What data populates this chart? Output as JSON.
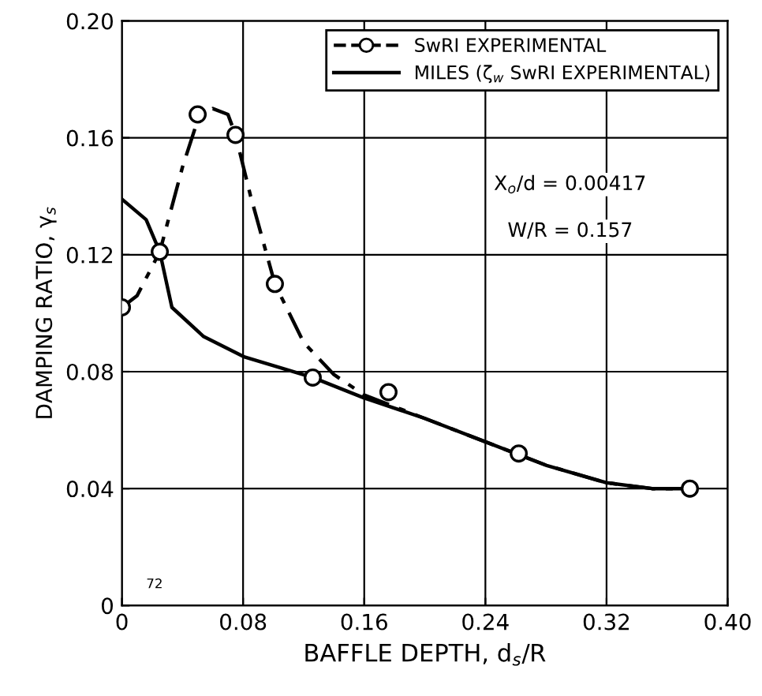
{
  "chart_data": {
    "type": "line",
    "xlabel": "BAFFLE DEPTH, d$_{s}$/R",
    "ylabel": "DAMPING RATIO, γ$_{s}$",
    "xlim": [
      0,
      0.4
    ],
    "ylim": [
      0,
      0.2
    ],
    "xticks": [
      0,
      0.08,
      0.16,
      0.24,
      0.32,
      {
        "value": 0.4,
        "label": "0.40"
      }
    ],
    "yticks": [
      0,
      0.04,
      0.08,
      0.12,
      0.16,
      {
        "value": 0.2,
        "label": "0.20"
      }
    ],
    "grid": true,
    "legend": "top right",
    "series": [
      {
        "name": "SwRI EXPERIMENTAL",
        "color": "#000000",
        "line_style": "dashed",
        "marker": "none",
        "x": [
          0,
          0.01,
          0.025,
          0.04,
          0.05,
          0.06,
          0.07,
          0.075,
          0.085,
          0.101,
          0.12,
          0.14,
          0.16,
          0.2,
          0.24,
          0.28,
          0.32,
          0.35,
          0.375
        ],
        "values": [
          0.102,
          0.106,
          0.121,
          0.15,
          0.166,
          0.17,
          0.168,
          0.161,
          0.14,
          0.11,
          0.09,
          0.079,
          0.072,
          0.064,
          0.056,
          0.048,
          0.042,
          0.04,
          0.04
        ]
      },
      {
        "type": "scatter",
        "color": "#000000",
        "marker": "circle",
        "x": [
          0,
          0.025,
          0.05,
          0.075,
          0.101,
          0.126,
          0.176,
          0.262,
          0.375
        ],
        "values": [
          0.102,
          0.121,
          0.168,
          0.161,
          0.11,
          0.078,
          0.073,
          0.052,
          0.04
        ]
      },
      {
        "name": "MILES (ζ$_{w}$ SwRI EXPERIMENTAL)",
        "color": "#000000",
        "line_style": "solid",
        "marker": "none",
        "x": [
          0,
          0.016,
          0.025,
          0.033,
          0.054,
          0.081,
          0.126,
          0.16,
          0.2,
          0.24,
          0.28,
          0.32,
          0.35,
          0.375
        ],
        "values": [
          0.139,
          0.132,
          0.121,
          0.102,
          0.092,
          0.085,
          0.078,
          0.071,
          0.064,
          0.056,
          0.048,
          0.042,
          0.04,
          0.04
        ]
      }
    ],
    "annotations": [
      "X$_{o}$/d = 0.00417",
      "W/R = 0.157",
      "72"
    ]
  }
}
